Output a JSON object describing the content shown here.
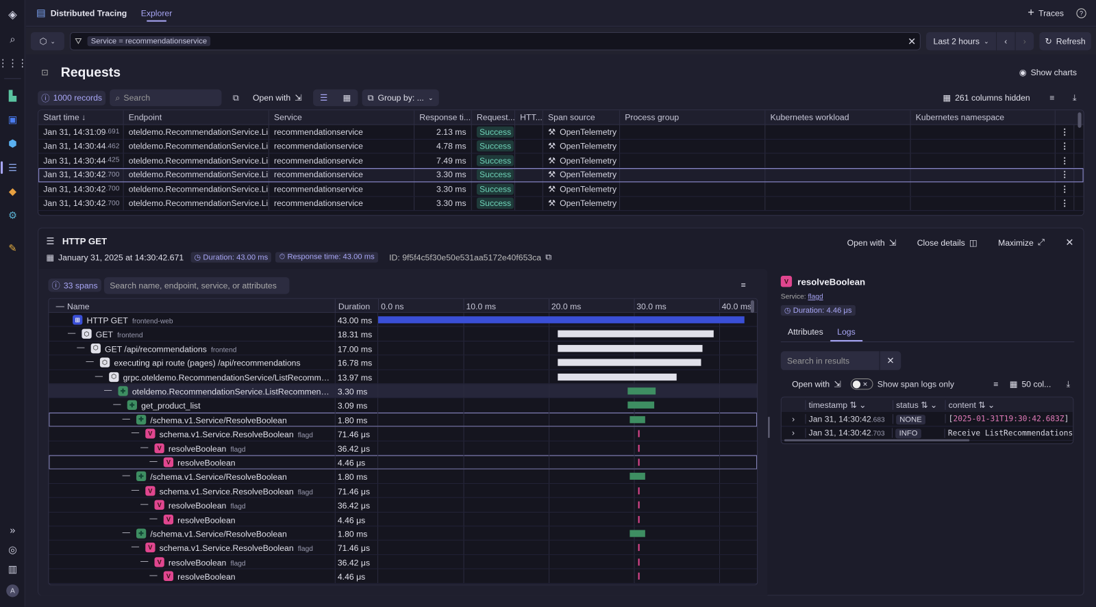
{
  "colors": {
    "accent": "#a8a6f5",
    "success": "#6fd3b8",
    "bar_root": "#3a4fd6",
    "bar_frontend": "#e1e1ea",
    "bar_python": "#3e8e62",
    "bar_flagd": "#e0468f"
  },
  "sidebar": {
    "icons": [
      "dynatrace-logo-icon",
      "search-icon",
      "apps-grid-icon",
      "dashboards-icon",
      "app-icon",
      "kubernetes-icon",
      "distributed-tracing-icon",
      "services-icon",
      "smartscape-icon",
      "notebooks-icon",
      "expand-icon",
      "help-icon",
      "usage-icon",
      "user-avatar-icon"
    ],
    "avatar": "A"
  },
  "topbar": {
    "app_name": "Distributed Tracing",
    "tab": "Explorer",
    "traces_label": "Traces"
  },
  "filter": {
    "query": "Service = recommendationservice",
    "timeframe": "Last 2 hours",
    "refresh": "Refresh"
  },
  "requests": {
    "title": "Requests",
    "show_charts": "Show charts",
    "records": "1000 records",
    "search_placeholder": "Search",
    "open_with": "Open with",
    "group_by": "Group by: ...",
    "columns_hidden": "261 columns hidden",
    "columns": [
      "Start time ↓",
      "Endpoint",
      "Service",
      "Response ti...",
      "Request...",
      "HTT...",
      "Span source",
      "Process group",
      "Kubernetes workload",
      "Kubernetes namespace"
    ],
    "rows": [
      {
        "time": "Jan 31, 14:31:09",
        "ms": ".691",
        "endpoint": "oteldemo.RecommendationService.Li...",
        "service": "recommendationservice",
        "response": "2.13 ms",
        "status": "Success",
        "source": "OpenTelemetry"
      },
      {
        "time": "Jan 31, 14:30:44",
        "ms": ".462",
        "endpoint": "oteldemo.RecommendationService.Li...",
        "service": "recommendationservice",
        "response": "4.78 ms",
        "status": "Success",
        "source": "OpenTelemetry"
      },
      {
        "time": "Jan 31, 14:30:44",
        "ms": ".425",
        "endpoint": "oteldemo.RecommendationService.Li...",
        "service": "recommendationservice",
        "response": "7.49 ms",
        "status": "Success",
        "source": "OpenTelemetry"
      },
      {
        "time": "Jan 31, 14:30:42",
        "ms": ".700",
        "endpoint": "oteldemo.RecommendationService.Li...",
        "service": "recommendationservice",
        "response": "3.30 ms",
        "status": "Success",
        "source": "OpenTelemetry",
        "selected": true
      },
      {
        "time": "Jan 31, 14:30:42",
        "ms": ".700",
        "endpoint": "oteldemo.RecommendationService.Li...",
        "service": "recommendationservice",
        "response": "3.30 ms",
        "status": "Success",
        "source": "OpenTelemetry"
      },
      {
        "time": "Jan 31, 14:30:42",
        "ms": ".700",
        "endpoint": "oteldemo.RecommendationService.Li...",
        "service": "recommendationservice",
        "response": "3.30 ms",
        "status": "Success",
        "source": "OpenTelemetry"
      }
    ]
  },
  "details": {
    "title": "HTTP GET",
    "date": "January 31, 2025 at 14:30:42.671",
    "duration": "Duration: 43.00 ms",
    "response_time": "Response time: 43.00 ms",
    "id": "ID: 9f5f4c5f30e50e531aa5172e40f653ca",
    "open_with": "Open with",
    "close_details": "Close details",
    "maximize": "Maximize",
    "spans_count": "33 spans",
    "span_search_placeholder": "Search name, endpoint, service, or attributes",
    "col_name": "Name",
    "col_duration": "Duration",
    "ticks": [
      "0.0 ns",
      "10.0 ms",
      "20.0 ms",
      "30.0 ms",
      "40.0 ms"
    ],
    "spans": [
      {
        "name": "HTTP GET",
        "service": "frontend-web",
        "duration": "43.00 ms",
        "depth": 0,
        "kind": "web",
        "start_ms": 0,
        "dur_ms": 43
      },
      {
        "name": "GET",
        "service": "frontend",
        "duration": "18.31 ms",
        "depth": 1,
        "kind": "node",
        "start_ms": 21.1,
        "dur_ms": 18.31
      },
      {
        "name": "GET /api/recommendations",
        "service": "frontend",
        "duration": "17.00 ms",
        "depth": 2,
        "kind": "node",
        "start_ms": 21.1,
        "dur_ms": 17
      },
      {
        "name": "executing api route (pages) /api/recommendations",
        "service": "",
        "duration": "16.78 ms",
        "depth": 3,
        "kind": "node",
        "start_ms": 21.1,
        "dur_ms": 16.78
      },
      {
        "name": "grpc.oteldemo.RecommendationService/ListRecommendati...",
        "service": "",
        "duration": "13.97 ms",
        "depth": 4,
        "kind": "node",
        "start_ms": 21.1,
        "dur_ms": 13.97
      },
      {
        "name": "oteldemo.RecommendationService.ListRecommendation...",
        "service": "",
        "duration": "3.30 ms",
        "depth": 5,
        "kind": "python",
        "start_ms": 29.3,
        "dur_ms": 3.3,
        "highlight": true
      },
      {
        "name": "get_product_list",
        "service": "",
        "duration": "3.09 ms",
        "depth": 6,
        "kind": "python",
        "start_ms": 29.3,
        "dur_ms": 3.09
      },
      {
        "name": "/schema.v1.Service/ResolveBoolean",
        "service": "",
        "duration": "1.80 ms",
        "depth": 7,
        "kind": "python",
        "start_ms": 29.5,
        "dur_ms": 1.8,
        "outline": true
      },
      {
        "name": "schema.v1.Service.ResolveBoolean",
        "service": "flagd",
        "duration": "71.46 μs",
        "depth": 8,
        "kind": "flagd",
        "start_ms": 30.5,
        "dur_ms": 0.07146
      },
      {
        "name": "resolveBoolean",
        "service": "flagd",
        "duration": "36.42 μs",
        "depth": 9,
        "kind": "flagd",
        "start_ms": 30.5,
        "dur_ms": 0.03642
      },
      {
        "name": "resolveBoolean",
        "service": "",
        "duration": "4.46 μs",
        "depth": 10,
        "kind": "flagd",
        "start_ms": 30.5,
        "dur_ms": 0.00446,
        "outline": true
      },
      {
        "name": "/schema.v1.Service/ResolveBoolean",
        "service": "",
        "duration": "1.80 ms",
        "depth": 7,
        "kind": "python",
        "start_ms": 29.5,
        "dur_ms": 1.8
      },
      {
        "name": "schema.v1.Service.ResolveBoolean",
        "service": "flagd",
        "duration": "71.46 μs",
        "depth": 8,
        "kind": "flagd",
        "start_ms": 30.5,
        "dur_ms": 0.07146
      },
      {
        "name": "resolveBoolean",
        "service": "flagd",
        "duration": "36.42 μs",
        "depth": 9,
        "kind": "flagd",
        "start_ms": 30.5,
        "dur_ms": 0.03642
      },
      {
        "name": "resolveBoolean",
        "service": "",
        "duration": "4.46 μs",
        "depth": 10,
        "kind": "flagd",
        "start_ms": 30.5,
        "dur_ms": 0.00446
      },
      {
        "name": "/schema.v1.Service/ResolveBoolean",
        "service": "",
        "duration": "1.80 ms",
        "depth": 7,
        "kind": "python",
        "start_ms": 29.5,
        "dur_ms": 1.8
      },
      {
        "name": "schema.v1.Service.ResolveBoolean",
        "service": "flagd",
        "duration": "71.46 μs",
        "depth": 8,
        "kind": "flagd",
        "start_ms": 30.5,
        "dur_ms": 0.07146
      },
      {
        "name": "resolveBoolean",
        "service": "flagd",
        "duration": "36.42 μs",
        "depth": 9,
        "kind": "flagd",
        "start_ms": 30.5,
        "dur_ms": 0.03642
      },
      {
        "name": "resolveBoolean",
        "service": "",
        "duration": "4.46 μs",
        "depth": 10,
        "kind": "flagd",
        "start_ms": 30.5,
        "dur_ms": 0.00446
      }
    ]
  },
  "span_panel": {
    "title": "resolveBoolean",
    "service_label": "Service:",
    "service": "flagd",
    "duration": "Duration: 4.46 μs",
    "tabs": [
      "Attributes",
      "Logs"
    ],
    "active_tab": "Logs",
    "search_placeholder": "Search in results",
    "open_with": "Open with",
    "toggle_label": "Show span logs only",
    "toggle_on": false,
    "columns_btn": "50 col...",
    "log_columns": [
      "timestamp",
      "status",
      "content"
    ],
    "logs": [
      {
        "time": "Jan 31, 14:30:42",
        "ms": ".683",
        "status": "NONE",
        "content": "2025-01-31T19:30:42.683Z"
      },
      {
        "time": "Jan 31, 14:30:42",
        "ms": ".703",
        "status": "INFO",
        "content": "Receive ListRecommendations"
      }
    ]
  }
}
